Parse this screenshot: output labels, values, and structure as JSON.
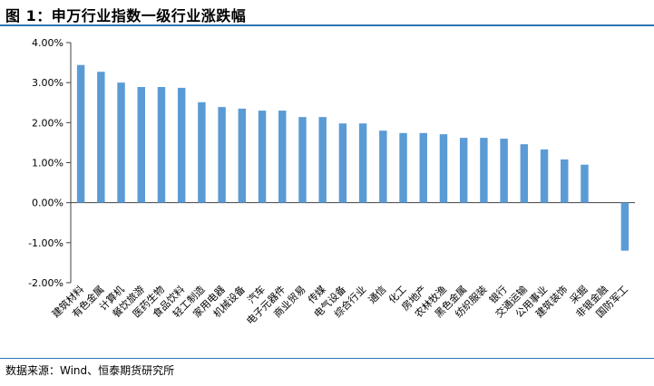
{
  "header": {
    "title": "图 1：申万行业指数一级行业涨跌幅"
  },
  "footer": {
    "source": "数据来源：Wind、恒泰期货研究所"
  },
  "colors": {
    "bar": "#5b9bd5",
    "rule": "#2e74b5",
    "axis": "#404040"
  },
  "chart_data": {
    "type": "bar",
    "title": "",
    "xlabel": "",
    "ylabel": "",
    "ylim": [
      -2.0,
      4.0
    ],
    "y_ticks": [
      "4.00%",
      "3.00%",
      "2.00%",
      "1.00%",
      "0.00%",
      "-1.00%",
      "-2.00%"
    ],
    "y_tick_values": [
      4,
      3,
      2,
      1,
      0,
      -1,
      -2
    ],
    "grid": false,
    "legend": "none",
    "categories": [
      "建筑材料",
      "有色金属",
      "计算机",
      "餐饮旅游",
      "医药生物",
      "食品饮料",
      "轻工制造",
      "家用电器",
      "机械设备",
      "汽车",
      "电子元器件",
      "商业贸易",
      "传媒",
      "电气设备",
      "综合行业",
      "通信",
      "化工",
      "房地产",
      "农林牧渔",
      "黑色金属",
      "纺织服装",
      "银行",
      "交通运输",
      "公用事业",
      "建筑装饰",
      "采掘",
      "非银金融",
      "国防军工"
    ],
    "values": [
      3.44,
      3.27,
      3.0,
      2.89,
      2.89,
      2.87,
      2.51,
      2.39,
      2.35,
      2.3,
      2.3,
      2.14,
      2.14,
      1.98,
      1.98,
      1.8,
      1.74,
      1.74,
      1.71,
      1.62,
      1.62,
      1.6,
      1.46,
      1.33,
      1.08,
      0.95,
      0.0,
      -1.2
    ]
  }
}
